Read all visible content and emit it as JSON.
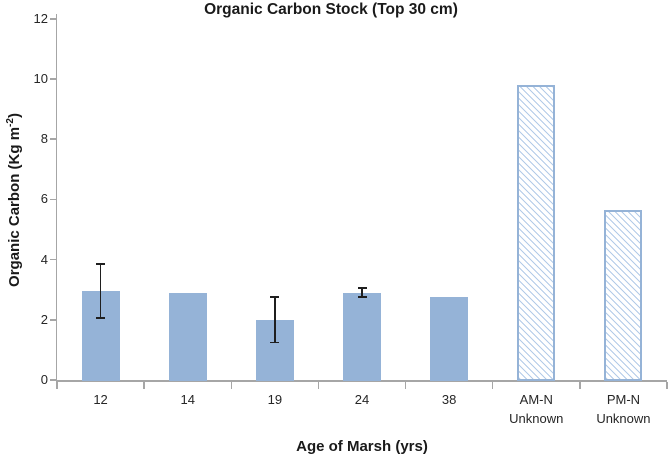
{
  "title": "Organic Carbon Stock (Top 30 cm)",
  "chart_data": {
    "type": "bar",
    "title": "Organic Carbon Stock (Top 30 cm)",
    "xlabel": "Age of Marsh (yrs)",
    "ylabel": "Organic Carbon (Kg m-2)",
    "ylabel_parts": {
      "prefix": "Organic Carbon (Kg m",
      "superscript": "-2",
      "suffix": ")"
    },
    "categories": [
      "12",
      "14",
      "19",
      "24",
      "38",
      "AM-N Unknown",
      "PM-N Unknown"
    ],
    "category_lines": [
      [
        "12"
      ],
      [
        "14"
      ],
      [
        "19"
      ],
      [
        "24"
      ],
      [
        "38"
      ],
      [
        "AM-N",
        "Unknown"
      ],
      [
        "PM-N",
        "Unknown"
      ]
    ],
    "values": [
      2.95,
      2.9,
      2.0,
      2.9,
      2.75,
      9.8,
      5.65
    ],
    "error_bars": [
      0.9,
      null,
      0.75,
      0.15,
      null,
      null,
      null
    ],
    "bar_styles": [
      "solid",
      "solid",
      "solid",
      "solid",
      "solid",
      "hatched",
      "hatched"
    ],
    "ylim": [
      0,
      12
    ],
    "yticks": [
      0,
      2,
      4,
      6,
      8,
      10,
      12
    ],
    "grid": false,
    "legend": null,
    "colors": {
      "bar_fill": "#95B3D7",
      "bar_border": "#95B3D7",
      "hatch_line": "#B3CBE8",
      "axis": "#A6A6A6",
      "error_bar": "#1F1F1F",
      "text": "#262626"
    }
  }
}
